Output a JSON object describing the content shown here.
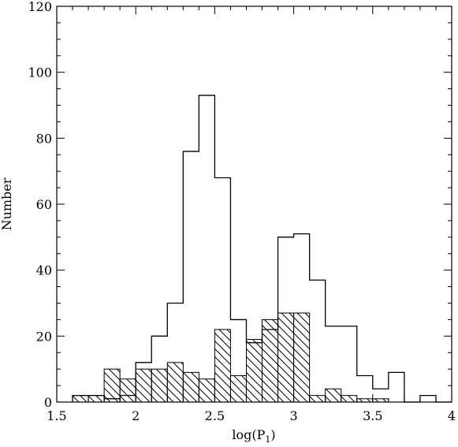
{
  "chart_data": {
    "type": "bar",
    "subtype": "step-histogram",
    "xlabel": "log(P",
    "xlabel_sub": "1",
    "xlabel_close": ")",
    "ylabel": "Number",
    "xlim": [
      1.5,
      4
    ],
    "ylim": [
      0,
      120
    ],
    "x_ticks": [
      1.5,
      2,
      2.5,
      3,
      3.5,
      4
    ],
    "x_tick_labels": [
      "1.5",
      "2",
      "2.5",
      "3",
      "3.5",
      "4"
    ],
    "y_ticks": [
      0,
      20,
      40,
      60,
      80,
      100,
      120
    ],
    "y_tick_labels": [
      "0",
      "20",
      "40",
      "60",
      "80",
      "100",
      "120"
    ],
    "bin_width": 0.1,
    "bin_starts": [
      1.6,
      1.7,
      1.8,
      1.9,
      2.0,
      2.1,
      2.2,
      2.3,
      2.4,
      2.5,
      2.6,
      2.7,
      2.8,
      2.9,
      3.0,
      3.1,
      3.2,
      3.3,
      3.4,
      3.5,
      3.6,
      3.7,
      3.8,
      3.9
    ],
    "series": [
      {
        "fill": "none",
        "values": [
          2,
          2,
          1,
          2,
          12,
          20,
          30,
          76,
          93,
          68,
          25,
          18,
          22,
          50,
          51,
          37,
          23,
          23,
          8,
          4,
          9,
          0,
          2,
          0
        ]
      },
      {
        "fill": "hatched",
        "values": [
          2,
          2,
          10,
          7,
          10,
          10,
          12,
          9,
          7,
          22,
          8,
          19,
          25,
          27,
          27,
          2,
          4,
          2,
          1,
          1,
          0,
          0,
          0,
          0
        ]
      }
    ],
    "grid": false,
    "colors": {
      "line": "#000000",
      "background": "#ffffff"
    }
  }
}
